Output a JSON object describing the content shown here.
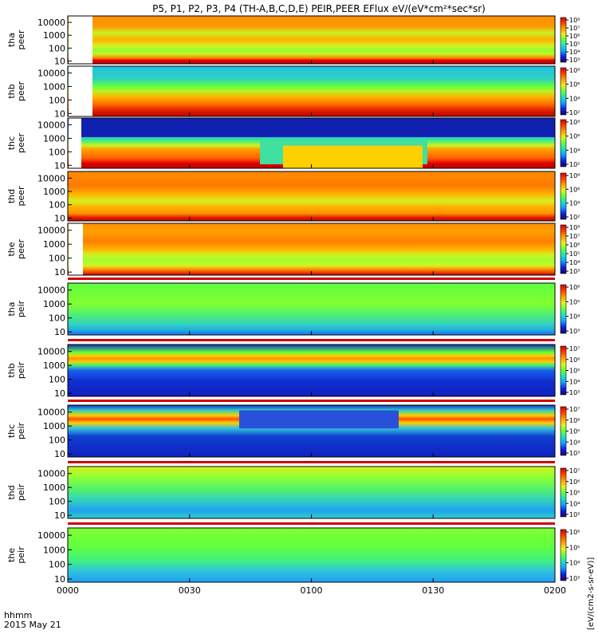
{
  "title": "P5, P1, P2, P3, P4 (TH-A,B,C,D,E) PEIR,PEER EFlux eV/(eV*cm²*sec*sr)",
  "xaxis": {
    "ticks": [
      "0000",
      "0030",
      "0100",
      "0130",
      "0200"
    ],
    "label_line1": "hhmm",
    "label_line2": "2015 May 21"
  },
  "colorbar_unit_label": "[eV/(cm2-s-sr-eV)]",
  "colormap": [
    "#1c0070",
    "#1020e0",
    "#10a0ff",
    "#20e0c0",
    "#60ff40",
    "#e8f020",
    "#ffa000",
    "#ff4000",
    "#d40000"
  ],
  "chart_data": {
    "type": "heatmap",
    "x_range": [
      "0000",
      "0200"
    ],
    "y_scale": "log",
    "panels": [
      {
        "id": "tha-peer",
        "probe": "tha",
        "species": "peer",
        "yticks": [
          "10000",
          "1000",
          "100",
          "10"
        ],
        "cbticks": [
          "10⁸",
          "10⁷",
          "10⁶",
          "10⁵",
          "10⁴",
          "10³"
        ]
      },
      {
        "id": "thb-peer",
        "probe": "thb",
        "species": "peer",
        "yticks": [
          "10000",
          "1000",
          "100",
          "10"
        ],
        "cbticks": [
          "10⁸",
          "10⁶",
          "10⁴",
          "10²"
        ]
      },
      {
        "id": "thc-peer",
        "probe": "thc",
        "species": "peer",
        "yticks": [
          "10000",
          "1000",
          "100",
          "10"
        ],
        "cbticks": [
          "10⁸",
          "10⁶",
          "10⁴",
          "10²"
        ]
      },
      {
        "id": "thd-peer",
        "probe": "thd",
        "species": "peer",
        "yticks": [
          "10000",
          "1000",
          "100",
          "10"
        ],
        "cbticks": [
          "10⁸",
          "10⁶",
          "10⁴",
          "10²"
        ]
      },
      {
        "id": "the-peer",
        "probe": "the",
        "species": "peer",
        "yticks": [
          "10000",
          "1000",
          "100",
          "10"
        ],
        "cbticks": [
          "10⁸",
          "10⁷",
          "10⁶",
          "10⁵",
          "10⁴",
          "10³"
        ]
      },
      {
        "id": "tha-peir",
        "probe": "tha",
        "species": "peir",
        "yticks": [
          "10000",
          "1000",
          "100",
          "10"
        ],
        "cbticks": [
          "10⁶",
          "10⁵",
          "10⁴",
          "10³"
        ]
      },
      {
        "id": "thb-peir",
        "probe": "thb",
        "species": "peir",
        "yticks": [
          "10000",
          "1000",
          "100",
          "10"
        ],
        "cbticks": [
          "10⁷",
          "10⁶",
          "10⁵",
          "10⁴",
          "10³"
        ]
      },
      {
        "id": "thc-peir",
        "probe": "thc",
        "species": "peir",
        "yticks": [
          "10000",
          "1000",
          "100",
          "10"
        ],
        "cbticks": [
          "10⁷",
          "10⁶",
          "10⁵",
          "10⁴",
          "10³"
        ]
      },
      {
        "id": "thd-peir",
        "probe": "thd",
        "species": "peir",
        "yticks": [
          "10000",
          "1000",
          "100",
          "10"
        ],
        "cbticks": [
          "10⁷",
          "10⁶",
          "10⁵",
          "10⁴",
          "10³"
        ]
      },
      {
        "id": "the-peir",
        "probe": "the",
        "species": "peir",
        "yticks": [
          "10000",
          "1000",
          "100",
          "10"
        ],
        "cbticks": [
          "10⁶",
          "10⁵",
          "10⁴",
          "10³"
        ]
      }
    ]
  }
}
